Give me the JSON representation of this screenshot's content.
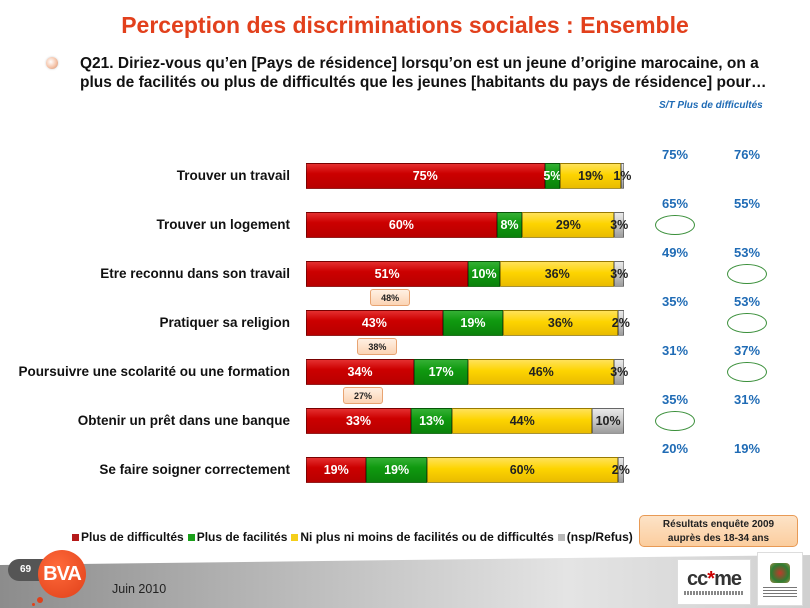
{
  "title": "Perception des discriminations sociales : Ensemble",
  "question": "Q21. Diriez-vous qu’en [Pays de résidence] lorsqu’on est un jeune d’origine marocaine, on a plus de facilités ou plus de difficultés que les jeunes [habitants du pays de résidence] pour…",
  "st_header": "S/T Plus de difficultés",
  "colors": {
    "plus_difficultes": "#cc0000",
    "plus_facilites": "#109a10",
    "ni_plus_ni_moins": "#fdd400",
    "nsp_refus": "#c8c8c8",
    "title": "#e2401c",
    "st_values": "#1f6bb5"
  },
  "chart_data": {
    "type": "bar",
    "orientation": "horizontal-stacked-100",
    "title": "Perception des discriminations sociales : Ensemble",
    "categories": [
      "Trouver un travail",
      "Trouver un logement",
      "Etre reconnu dans son travail",
      "Pratiquer sa religion",
      "Poursuivre une scolarité ou une formation",
      "Obtenir un prêt dans une banque",
      "Se faire soigner correctement"
    ],
    "series": [
      {
        "name": "Plus de difficultés",
        "key": "red",
        "values": [
          75,
          60,
          51,
          43,
          34,
          33,
          19
        ]
      },
      {
        "name": "Plus de facilités",
        "key": "green",
        "values": [
          5,
          8,
          10,
          19,
          17,
          13,
          19
        ]
      },
      {
        "name": "Ni plus ni moins de facilités ou de difficultés",
        "key": "yellow",
        "values": [
          19,
          29,
          36,
          36,
          46,
          44,
          60
        ]
      },
      {
        "name": "(nsp/Refus)",
        "key": "grey",
        "values": [
          1,
          3,
          3,
          2,
          3,
          10,
          2
        ]
      }
    ],
    "data_labels": [
      [
        "75%",
        "5%",
        "19%",
        "1%"
      ],
      [
        "60%",
        "8%",
        "29%",
        "3%"
      ],
      [
        "51%",
        "10%",
        "36%",
        "3%"
      ],
      [
        "43%",
        "19%",
        "36%",
        "2%"
      ],
      [
        "34%",
        "17%",
        "46%",
        "3%"
      ],
      [
        "33%",
        "13%",
        "44%",
        "10%"
      ],
      [
        "19%",
        "19%",
        "60%",
        "2%"
      ]
    ],
    "previous_values": [
      null,
      null,
      "48%",
      "38%",
      "27%",
      null,
      null
    ],
    "st_plus_difficultes": {
      "col1": [
        "75%",
        "65%",
        "49%",
        "35%",
        "31%",
        "35%",
        "20%"
      ],
      "col2": [
        "76%",
        "55%",
        "53%",
        "53%",
        "37%",
        "31%",
        "19%"
      ],
      "highlighted_col1": [
        false,
        true,
        false,
        false,
        false,
        true,
        false
      ],
      "highlighted_col2": [
        false,
        false,
        true,
        true,
        true,
        false,
        false
      ]
    },
    "xlim": [
      0,
      100
    ],
    "legend_position": "bottom",
    "grid": false
  },
  "legend": [
    {
      "label": "Plus de difficultés"
    },
    {
      "label": "Plus de facilités"
    },
    {
      "label": "Ni plus ni moins de facilités ou de difficultés"
    },
    {
      "label": "(nsp/Refus)"
    }
  ],
  "results_box": {
    "line1": "Résultats enquête 2009",
    "line2": "auprès des 18-34 ans"
  },
  "footer": {
    "page_number": "69",
    "brand": "BVA",
    "date": "Juin 2010",
    "partner_logo_text": "ccme"
  }
}
